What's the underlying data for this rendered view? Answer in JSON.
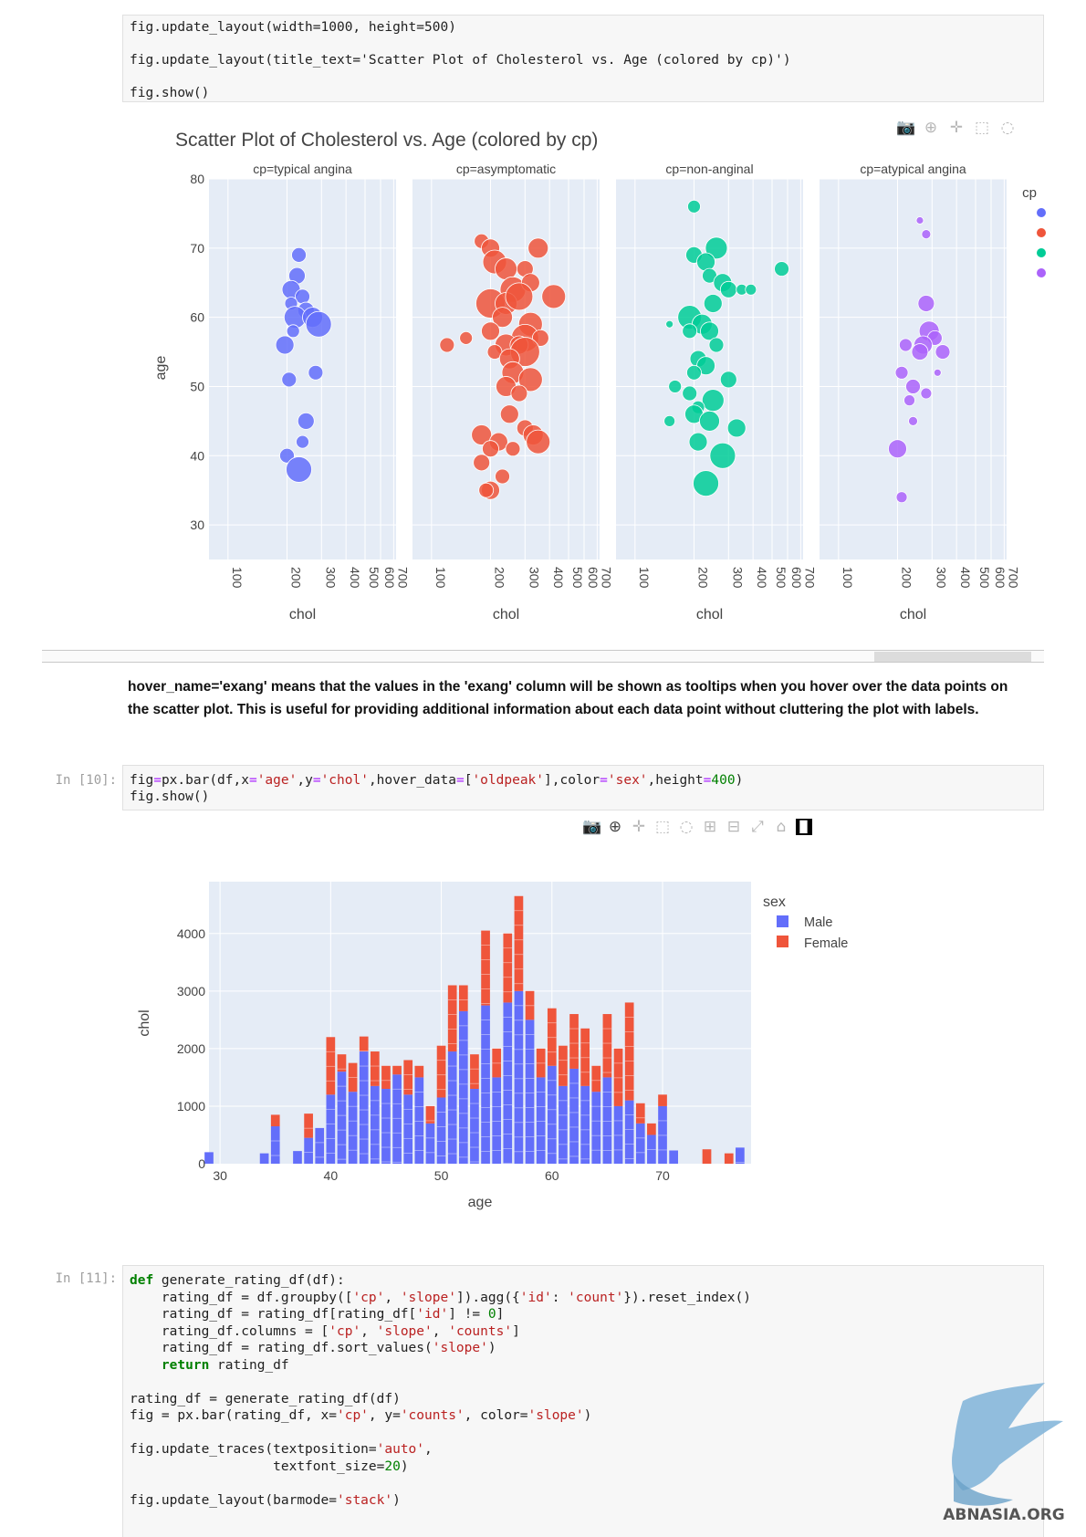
{
  "cell_top": {
    "lines": [
      "fig.update_layout(width=1000, height=500)",
      "fig.update_layout(title_text='Scatter Plot of Cholesterol vs. Age (colored by cp)')",
      "fig.show()"
    ]
  },
  "scatter": {
    "title": "Scatter Plot of Cholesterol vs. Age (colored by cp)",
    "facets": [
      "cp=typical angina",
      "cp=asymptomatic",
      "cp=non-anginal",
      "cp=atypical angina"
    ],
    "ylabel": "age",
    "xlabel": "chol",
    "legend_title": "cp",
    "y_ticks": [
      "80",
      "70",
      "60",
      "50",
      "40",
      "30"
    ],
    "x_ticks": [
      "100",
      "200",
      "300",
      "400",
      "500",
      "600",
      "700"
    ]
  },
  "paragraph": "hover_name='exang' means that the values in the 'exang' column will be shown as tooltips when you hover over the data points on the scatter plot. This is useful for providing additional information about each data point without cluttering the plot with labels.",
  "cell_10": {
    "prompt": "In [10]:",
    "lines": [
      "fig=px.bar(df,x='age',y='chol',hover_data=['oldpeak'],color='sex',height=400)",
      "fig.show()"
    ]
  },
  "cell_11": {
    "prompt": "In [11]:",
    "lines": [
      "def generate_rating_df(df):",
      "    rating_df = df.groupby(['cp', 'slope']).agg({'id': 'count'}).reset_index()",
      "    rating_df = rating_df[rating_df['id'] != 0]",
      "    rating_df.columns = ['cp', 'slope', 'counts']",
      "    rating_df = rating_df.sort_values('slope')",
      "    return rating_df",
      "",
      "rating_df = generate_rating_df(df)",
      "fig = px.bar(rating_df, x='cp', y='counts', color='slope')",
      "",
      "fig.update_traces(textposition='auto',",
      "                  textfont_size=20)",
      "",
      "fig.update_layout(barmode='stack')"
    ]
  },
  "watermark": "ABNASIA.ORG",
  "colors": {
    "typical": "#636efa",
    "asymptomatic": "#ef553b",
    "nonanginal": "#00cc96",
    "atypical": "#ab63fa",
    "male": "#636efa",
    "female": "#ef553b",
    "plot_bg": "#e5ecf6"
  },
  "chart_data": [
    {
      "type": "scatter",
      "title": "Scatter Plot of Cholesterol vs. Age (colored by cp)",
      "xlabel": "chol",
      "ylabel": "age",
      "x_scale": "log",
      "xlim": [
        80,
        720
      ],
      "ylim": [
        25,
        80
      ],
      "legend_title": "cp",
      "legend_position": "right",
      "series": [
        {
          "name": "typical angina",
          "points": [
            [
              230,
              69,
              8
            ],
            [
              225,
              66,
              9
            ],
            [
              210,
              64,
              10
            ],
            [
              240,
              63,
              8
            ],
            [
              210,
              62,
              7
            ],
            [
              250,
              61,
              9
            ],
            [
              220,
              60,
              12
            ],
            [
              270,
              60,
              11
            ],
            [
              290,
              59,
              14
            ],
            [
              215,
              58,
              7
            ],
            [
              195,
              56,
              10
            ],
            [
              205,
              51,
              8
            ],
            [
              280,
              52,
              8
            ],
            [
              250,
              45,
              9
            ],
            [
              240,
              42,
              7
            ],
            [
              200,
              40,
              8
            ],
            [
              230,
              38,
              14
            ]
          ]
        },
        {
          "name": "asymptomatic",
          "points": [
            [
              180,
              71,
              8
            ],
            [
              200,
              70,
              10
            ],
            [
              350,
              70,
              11
            ],
            [
              210,
              68,
              13
            ],
            [
              240,
              67,
              12
            ],
            [
              300,
              67,
              9
            ],
            [
              260,
              64,
              14
            ],
            [
              320,
              65,
              10
            ],
            [
              200,
              62,
              16
            ],
            [
              240,
              62,
              12
            ],
            [
              280,
              63,
              15
            ],
            [
              420,
              63,
              13
            ],
            [
              230,
              60,
              11
            ],
            [
              320,
              59,
              13
            ],
            [
              300,
              57,
              15
            ],
            [
              200,
              58,
              10
            ],
            [
              360,
              57,
              9
            ],
            [
              240,
              56,
              12
            ],
            [
              280,
              56,
              10
            ],
            [
              300,
              55,
              16
            ],
            [
              210,
              55,
              8
            ],
            [
              250,
              54,
              11
            ],
            [
              120,
              56,
              8
            ],
            [
              150,
              57,
              7
            ],
            [
              260,
              52,
              12
            ],
            [
              320,
              51,
              13
            ],
            [
              240,
              50,
              11
            ],
            [
              280,
              49,
              9
            ],
            [
              250,
              46,
              10
            ],
            [
              300,
              44,
              9
            ],
            [
              330,
              43,
              11
            ],
            [
              180,
              43,
              11
            ],
            [
              220,
              42,
              10
            ],
            [
              350,
              42,
              13
            ],
            [
              200,
              41,
              9
            ],
            [
              260,
              41,
              8
            ],
            [
              180,
              39,
              9
            ],
            [
              230,
              37,
              8
            ],
            [
              200,
              35,
              10
            ],
            [
              190,
              35,
              8
            ]
          ]
        },
        {
          "name": "non-anginal",
          "points": [
            [
              200,
              76,
              7
            ],
            [
              260,
              70,
              12
            ],
            [
              200,
              69,
              9
            ],
            [
              230,
              68,
              10
            ],
            [
              560,
              67,
              8
            ],
            [
              240,
              66,
              8
            ],
            [
              280,
              65,
              10
            ],
            [
              300,
              64,
              9
            ],
            [
              350,
              64,
              6
            ],
            [
              390,
              64,
              6
            ],
            [
              250,
              62,
              10
            ],
            [
              190,
              60,
              13
            ],
            [
              220,
              59,
              11
            ],
            [
              150,
              59,
              4
            ],
            [
              190,
              58,
              8
            ],
            [
              240,
              58,
              10
            ],
            [
              260,
              56,
              8
            ],
            [
              210,
              54,
              9
            ],
            [
              230,
              53,
              10
            ],
            [
              200,
              52,
              8
            ],
            [
              300,
              51,
              9
            ],
            [
              160,
              50,
              7
            ],
            [
              190,
              49,
              8
            ],
            [
              250,
              48,
              12
            ],
            [
              210,
              47,
              7
            ],
            [
              200,
              46,
              10
            ],
            [
              240,
              45,
              11
            ],
            [
              150,
              45,
              6
            ],
            [
              330,
              44,
              10
            ],
            [
              210,
              42,
              10
            ],
            [
              280,
              40,
              14
            ],
            [
              230,
              36,
              14
            ]
          ]
        },
        {
          "name": "atypical angina",
          "points": [
            [
              260,
              74,
              4
            ],
            [
              280,
              72,
              5
            ],
            [
              280,
              62,
              9
            ],
            [
              290,
              58,
              11
            ],
            [
              310,
              57,
              8
            ],
            [
              270,
              56,
              10
            ],
            [
              260,
              55,
              9
            ],
            [
              340,
              55,
              8
            ],
            [
              220,
              56,
              7
            ],
            [
              210,
              52,
              7
            ],
            [
              320,
              52,
              4
            ],
            [
              240,
              50,
              8
            ],
            [
              280,
              49,
              6
            ],
            [
              230,
              48,
              6
            ],
            [
              240,
              45,
              5
            ],
            [
              200,
              41,
              10
            ],
            [
              210,
              34,
              6
            ]
          ]
        }
      ]
    },
    {
      "type": "bar",
      "barmode": "stack",
      "xlabel": "age",
      "ylabel": "chol",
      "xlim": [
        29,
        78
      ],
      "ylim": [
        0,
        4900
      ],
      "legend_title": "sex",
      "legend_position": "right",
      "series": [
        {
          "name": "Male",
          "x": [
            29,
            34,
            35,
            37,
            38,
            39,
            40,
            41,
            42,
            43,
            44,
            45,
            46,
            47,
            48,
            49,
            50,
            51,
            52,
            53,
            54,
            55,
            56,
            57,
            58,
            59,
            60,
            61,
            62,
            63,
            64,
            65,
            66,
            67,
            68,
            69,
            70,
            71,
            77
          ],
          "values": [
            200,
            180,
            650,
            220,
            450,
            620,
            1200,
            1600,
            1250,
            1950,
            1350,
            1300,
            1550,
            1200,
            1500,
            700,
            1150,
            1950,
            2650,
            1300,
            2750,
            1500,
            2800,
            3000,
            2500,
            1500,
            1700,
            1350,
            1650,
            1350,
            1250,
            1500,
            1000,
            1100,
            700,
            500,
            1000,
            230,
            280
          ]
        },
        {
          "name": "Female",
          "x": [
            35,
            38,
            39,
            40,
            41,
            42,
            43,
            44,
            45,
            46,
            47,
            48,
            49,
            50,
            51,
            52,
            53,
            54,
            55,
            56,
            57,
            58,
            59,
            60,
            61,
            62,
            63,
            64,
            65,
            66,
            67,
            68,
            69,
            70,
            71,
            74,
            76
          ],
          "values": [
            200,
            420,
            0,
            1000,
            300,
            500,
            260,
            600,
            400,
            150,
            600,
            200,
            300,
            900,
            1150,
            450,
            600,
            1300,
            500,
            1200,
            1650,
            500,
            500,
            1000,
            700,
            950,
            1000,
            450,
            1100,
            1000,
            1700,
            350,
            200,
            200,
            0,
            250,
            180
          ]
        }
      ]
    }
  ]
}
